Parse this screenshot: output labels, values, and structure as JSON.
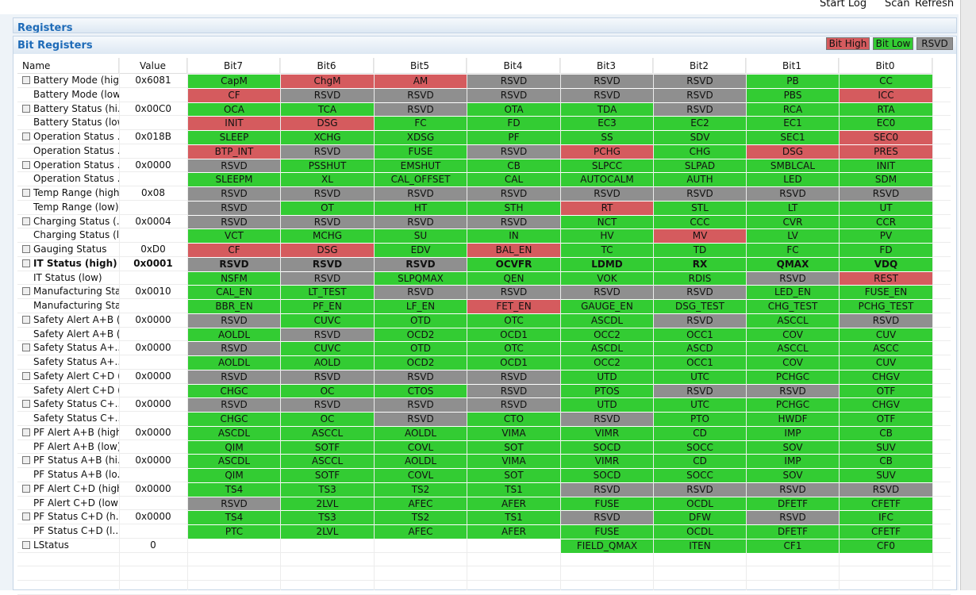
{
  "toolbar": {
    "buttons": [
      "Start Log",
      "Scan",
      "Refresh"
    ]
  },
  "registers_title": "Registers",
  "panel_title": "Bit Registers",
  "legend": [
    {
      "label": "Bit High",
      "code": "H",
      "color": "#d55b5e"
    },
    {
      "label": "Bit Low",
      "code": "L",
      "color": "#33cc33"
    },
    {
      "label": "RSVD",
      "code": "R",
      "color": "#8f8f8f"
    }
  ],
  "table": {
    "headers": [
      "Name",
      "Value",
      "Bit7",
      "Bit6",
      "Bit5",
      "Bit4",
      "Bit3",
      "Bit2",
      "Bit1",
      "Bit0"
    ],
    "rows": [
      {
        "name": "Battery Mode (high)",
        "value": "0x6081",
        "bits": [
          "CapM",
          "ChgM",
          "AM",
          "RSVD",
          "RSVD",
          "RSVD",
          "PB",
          "CC"
        ],
        "states": [
          "L",
          "H",
          "H",
          "R",
          "R",
          "R",
          "L",
          "L"
        ]
      },
      {
        "name": "Battery Mode (low)",
        "bits": [
          "CF",
          "RSVD",
          "RSVD",
          "RSVD",
          "RSVD",
          "RSVD",
          "PBS",
          "ICC"
        ],
        "states": [
          "H",
          "R",
          "R",
          "R",
          "R",
          "R",
          "L",
          "H"
        ]
      },
      {
        "name": "Battery Status (hi...",
        "value": "0x00C0",
        "bits": [
          "OCA",
          "TCA",
          "RSVD",
          "OTA",
          "TDA",
          "RSVD",
          "RCA",
          "RTA"
        ],
        "states": [
          "L",
          "L",
          "R",
          "L",
          "L",
          "R",
          "L",
          "L"
        ]
      },
      {
        "name": "Battery Status (low)",
        "bits": [
          "INIT",
          "DSG",
          "FC",
          "FD",
          "EC3",
          "EC2",
          "EC1",
          "EC0"
        ],
        "states": [
          "H",
          "H",
          "L",
          "L",
          "L",
          "L",
          "L",
          "L"
        ]
      },
      {
        "name": "Operation Status ...",
        "value": "0x018B",
        "bits": [
          "SLEEP",
          "XCHG",
          "XDSG",
          "PF",
          "SS",
          "SDV",
          "SEC1",
          "SEC0"
        ],
        "states": [
          "L",
          "L",
          "L",
          "L",
          "L",
          "L",
          "L",
          "H"
        ]
      },
      {
        "name": "Operation Status ...",
        "bits": [
          "BTP_INT",
          "RSVD",
          "FUSE",
          "RSVD",
          "PCHG",
          "CHG",
          "DSG",
          "PRES"
        ],
        "states": [
          "H",
          "R",
          "L",
          "R",
          "H",
          "L",
          "H",
          "H"
        ]
      },
      {
        "name": "Operation Status ...",
        "value": "0x0000",
        "bits": [
          "RSVD",
          "PSSHUT",
          "EMSHUT",
          "CB",
          "SLPCC",
          "SLPAD",
          "SMBLCAL",
          "INIT"
        ],
        "states": [
          "R",
          "L",
          "L",
          "L",
          "L",
          "L",
          "L",
          "L"
        ]
      },
      {
        "name": "Operation Status ...",
        "bits": [
          "SLEEPM",
          "XL",
          "CAL_OFFSET",
          "CAL",
          "AUTOCALM",
          "AUTH",
          "LED",
          "SDM"
        ],
        "states": [
          "L",
          "L",
          "L",
          "L",
          "L",
          "L",
          "L",
          "L"
        ]
      },
      {
        "name": "Temp Range (high)",
        "value": "0x08",
        "bits": [
          "RSVD",
          "RSVD",
          "RSVD",
          "RSVD",
          "RSVD",
          "RSVD",
          "RSVD",
          "RSVD"
        ],
        "states": [
          "R",
          "R",
          "R",
          "R",
          "R",
          "R",
          "R",
          "R"
        ]
      },
      {
        "name": "Temp Range (low)",
        "bits": [
          "RSVD",
          "OT",
          "HT",
          "STH",
          "RT",
          "STL",
          "LT",
          "UT"
        ],
        "states": [
          "R",
          "L",
          "L",
          "L",
          "H",
          "L",
          "L",
          "L"
        ]
      },
      {
        "name": "Charging Status (...",
        "value": "0x0004",
        "bits": [
          "RSVD",
          "RSVD",
          "RSVD",
          "RSVD",
          "NCT",
          "CCC",
          "CVR",
          "CCR"
        ],
        "states": [
          "R",
          "R",
          "R",
          "R",
          "L",
          "L",
          "L",
          "L"
        ]
      },
      {
        "name": "Charging Status (l...",
        "bits": [
          "VCT",
          "MCHG",
          "SU",
          "IN",
          "HV",
          "MV",
          "LV",
          "PV"
        ],
        "states": [
          "L",
          "L",
          "L",
          "L",
          "L",
          "H",
          "L",
          "L"
        ]
      },
      {
        "name": "Gauging Status",
        "value": "0xD0",
        "bits": [
          "CF",
          "DSG",
          "EDV",
          "BAL_EN",
          "TC",
          "TD",
          "FC",
          "FD"
        ],
        "states": [
          "H",
          "H",
          "L",
          "H",
          "L",
          "L",
          "L",
          "L"
        ]
      },
      {
        "name": "IT Status (high)",
        "value": "0x0001",
        "bold": true,
        "bits": [
          "RSVD",
          "RSVD",
          "RSVD",
          "OCVFR",
          "LDMD",
          "RX",
          "QMAX",
          "VDQ"
        ],
        "states": [
          "R",
          "R",
          "R",
          "L",
          "L",
          "L",
          "L",
          "L"
        ]
      },
      {
        "name": "IT Status (low)",
        "bits": [
          "NSFM",
          "RSVD",
          "SLPQMAX",
          "QEN",
          "VOK",
          "RDIS",
          "RSVD",
          "REST"
        ],
        "states": [
          "L",
          "R",
          "L",
          "L",
          "L",
          "L",
          "R",
          "H"
        ]
      },
      {
        "name": "Manufacturing Sta...",
        "value": "0x0010",
        "bits": [
          "CAL_EN",
          "LT_TEST",
          "RSVD",
          "RSVD",
          "RSVD",
          "RSVD",
          "LED_EN",
          "FUSE_EN"
        ],
        "states": [
          "L",
          "L",
          "R",
          "R",
          "R",
          "R",
          "L",
          "L"
        ]
      },
      {
        "name": "Manufacturing Sta...",
        "bits": [
          "BBR_EN",
          "PF_EN",
          "LF_EN",
          "FET_EN",
          "GAUGE_EN",
          "DSG_TEST",
          "CHG_TEST",
          "PCHG_TEST"
        ],
        "states": [
          "L",
          "L",
          "L",
          "H",
          "L",
          "L",
          "L",
          "L"
        ]
      },
      {
        "name": "Safety Alert A+B (...",
        "value": "0x0000",
        "bits": [
          "RSVD",
          "CUVC",
          "OTD",
          "OTC",
          "ASCDL",
          "RSVD",
          "ASCCL",
          "RSVD"
        ],
        "states": [
          "R",
          "L",
          "L",
          "L",
          "L",
          "R",
          "L",
          "R"
        ]
      },
      {
        "name": "Safety Alert A+B (...",
        "bits": [
          "AOLDL",
          "RSVD",
          "OCD2",
          "OCD1",
          "OCC2",
          "OCC1",
          "COV",
          "CUV"
        ],
        "states": [
          "L",
          "R",
          "L",
          "L",
          "L",
          "L",
          "L",
          "L"
        ]
      },
      {
        "name": "Safety Status A+...",
        "value": "0x0000",
        "bits": [
          "RSVD",
          "CUVC",
          "OTD",
          "OTC",
          "ASCDL",
          "ASCD",
          "ASCCL",
          "ASCC"
        ],
        "states": [
          "R",
          "L",
          "L",
          "L",
          "L",
          "L",
          "L",
          "L"
        ]
      },
      {
        "name": "Safety Status A+...",
        "bits": [
          "AOLDL",
          "AOLD",
          "OCD2",
          "OCD1",
          "OCC2",
          "OCC1",
          "COV",
          "CUV"
        ],
        "states": [
          "L",
          "L",
          "L",
          "L",
          "L",
          "L",
          "L",
          "L"
        ]
      },
      {
        "name": "Safety Alert C+D (...",
        "value": "0x0000",
        "bits": [
          "RSVD",
          "RSVD",
          "RSVD",
          "RSVD",
          "UTD",
          "UTC",
          "PCHGC",
          "CHGV"
        ],
        "states": [
          "R",
          "R",
          "R",
          "R",
          "L",
          "L",
          "L",
          "L"
        ]
      },
      {
        "name": "Safety Alert C+D (...",
        "bits": [
          "CHGC",
          "OC",
          "CTOS",
          "RSVD",
          "PTOS",
          "RSVD",
          "RSVD",
          "OTF"
        ],
        "states": [
          "L",
          "L",
          "L",
          "R",
          "L",
          "R",
          "R",
          "L"
        ]
      },
      {
        "name": "Safety Status C+...",
        "value": "0x0000",
        "bits": [
          "RSVD",
          "RSVD",
          "RSVD",
          "RSVD",
          "UTD",
          "UTC",
          "PCHGC",
          "CHGV"
        ],
        "states": [
          "R",
          "R",
          "R",
          "R",
          "L",
          "L",
          "L",
          "L"
        ]
      },
      {
        "name": "Safety Status C+...",
        "bits": [
          "CHGC",
          "OC",
          "RSVD",
          "CTO",
          "RSVD",
          "PTO",
          "HWDF",
          "OTF"
        ],
        "states": [
          "L",
          "L",
          "R",
          "L",
          "R",
          "L",
          "L",
          "L"
        ]
      },
      {
        "name": "PF Alert A+B (high)",
        "value": "0x0000",
        "bits": [
          "ASCDL",
          "ASCCL",
          "AOLDL",
          "VIMA",
          "VIMR",
          "CD",
          "IMP",
          "CB"
        ],
        "states": [
          "L",
          "L",
          "L",
          "L",
          "L",
          "L",
          "L",
          "L"
        ]
      },
      {
        "name": "PF Alert A+B (low)",
        "bits": [
          "QIM",
          "SOTF",
          "COVL",
          "SOT",
          "SOCD",
          "SOCC",
          "SOV",
          "SUV"
        ],
        "states": [
          "L",
          "L",
          "L",
          "L",
          "L",
          "L",
          "L",
          "L"
        ]
      },
      {
        "name": "PF Status A+B (hi...",
        "value": "0x0000",
        "bits": [
          "ASCDL",
          "ASCCL",
          "AOLDL",
          "VIMA",
          "VIMR",
          "CD",
          "IMP",
          "CB"
        ],
        "states": [
          "L",
          "L",
          "L",
          "L",
          "L",
          "L",
          "L",
          "L"
        ]
      },
      {
        "name": "PF Status A+B (lo...",
        "bits": [
          "QIM",
          "SOTF",
          "COVL",
          "SOT",
          "SOCD",
          "SOCC",
          "SOV",
          "SUV"
        ],
        "states": [
          "L",
          "L",
          "L",
          "L",
          "L",
          "L",
          "L",
          "L"
        ]
      },
      {
        "name": "PF Alert C+D (high)",
        "value": "0x0000",
        "bits": [
          "TS4",
          "TS3",
          "TS2",
          "TS1",
          "RSVD",
          "RSVD",
          "RSVD",
          "RSVD"
        ],
        "states": [
          "L",
          "L",
          "L",
          "L",
          "R",
          "R",
          "R",
          "R"
        ]
      },
      {
        "name": "PF Alert C+D (low)",
        "bits": [
          "RSVD",
          "2LVL",
          "AFEC",
          "AFER",
          "FUSE",
          "OCDL",
          "DFETF",
          "CFETF"
        ],
        "states": [
          "R",
          "L",
          "L",
          "L",
          "L",
          "L",
          "L",
          "L"
        ]
      },
      {
        "name": "PF Status C+D (h...",
        "value": "0x0000",
        "bits": [
          "TS4",
          "TS3",
          "TS2",
          "TS1",
          "RSVD",
          "DFW",
          "RSVD",
          "IFC"
        ],
        "states": [
          "L",
          "L",
          "L",
          "L",
          "R",
          "L",
          "R",
          "L"
        ]
      },
      {
        "name": "PF Status C+D (l...",
        "bits": [
          "PTC",
          "2LVL",
          "AFEC",
          "AFER",
          "FUSE",
          "OCDL",
          "DFETF",
          "CFETF"
        ],
        "states": [
          "L",
          "L",
          "L",
          "L",
          "L",
          "L",
          "L",
          "L"
        ]
      },
      {
        "name": "LStatus",
        "value": "0",
        "bits": [
          null,
          null,
          null,
          null,
          "FIELD_QMAX",
          "ITEN",
          "CF1",
          "CF0"
        ],
        "states": [
          null,
          null,
          null,
          null,
          "L",
          "L",
          "L",
          "L"
        ]
      }
    ]
  }
}
